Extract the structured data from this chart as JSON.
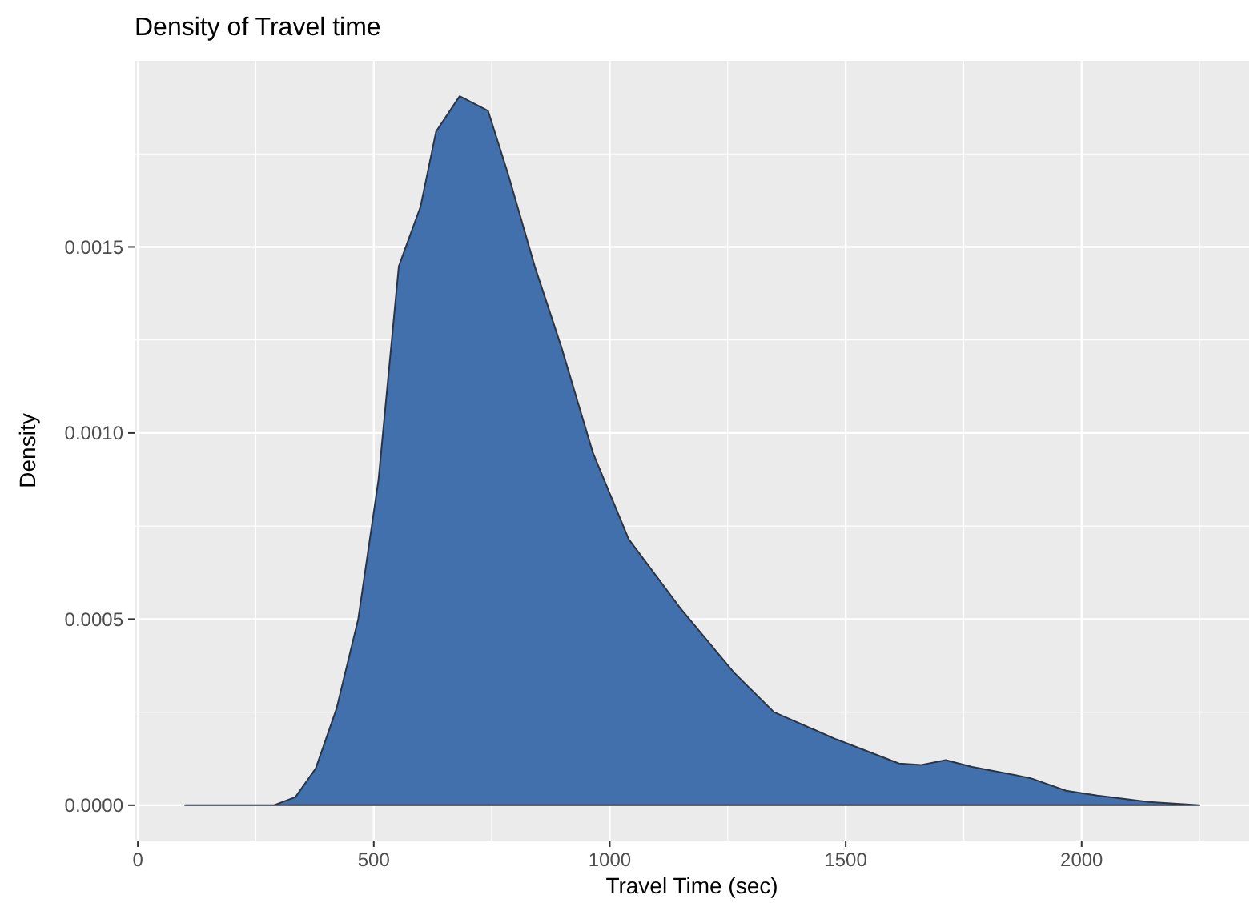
{
  "chart_data": {
    "type": "area",
    "title": "Density of Travel time",
    "xlabel": "Travel Time (sec)",
    "ylabel": "Density",
    "x": [
      100,
      288,
      334,
      377,
      421,
      467,
      510,
      553,
      599,
      632,
      682,
      742,
      785,
      841,
      897,
      964,
      1040,
      1149,
      1262,
      1348,
      1480,
      1613,
      1659,
      1712,
      1768,
      1891,
      1967,
      2033,
      2142,
      2248
    ],
    "values": [
      0,
      0,
      2.2e-05,
      9.9e-05,
      0.000259,
      0.0005,
      0.000875,
      0.001448,
      0.001608,
      0.00181,
      0.001905,
      0.001866,
      0.001694,
      0.001448,
      0.001233,
      0.000948,
      0.000715,
      0.00053,
      0.000358,
      0.00025,
      0.000177,
      0.000112,
      0.000108,
      0.000121,
      0.000103,
      7.3e-05,
      3.9e-05,
      2.6e-05,
      9e-06,
      0
    ],
    "color": "#4270ad",
    "xlim": [
      -7,
      2355
    ],
    "xticks": [
      0,
      500,
      1000,
      1500,
      2000
    ],
    "ylim": [
      -9.5e-05,
      0.002
    ],
    "yticks": [
      {
        "value": 0,
        "label": "0.0000"
      },
      {
        "value": 0.0005,
        "label": "0.0005"
      },
      {
        "value": 0.001,
        "label": "0.0010"
      },
      {
        "value": 0.0015,
        "label": "0.0015"
      }
    ],
    "grid": true
  }
}
